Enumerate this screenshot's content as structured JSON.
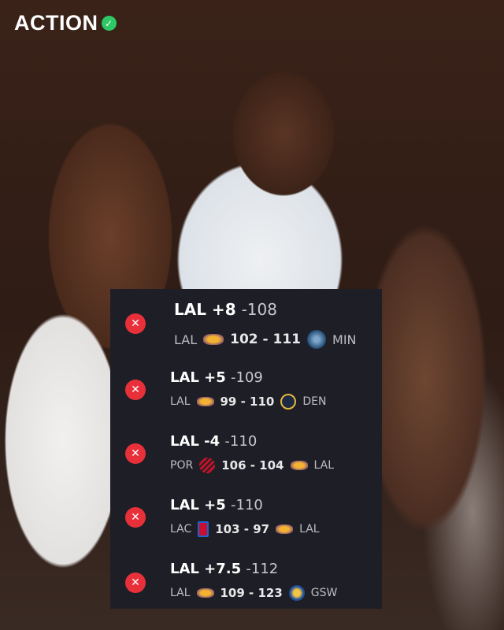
{
  "brand": {
    "name": "ACTION",
    "badge_icon": "check-circle-icon",
    "badge_color": "#2ec866"
  },
  "bets": [
    {
      "line": "LAL +8",
      "odds": "-108",
      "result_icon": "x-circle-icon",
      "away": "LAL",
      "away_logo": "lakers-logo",
      "score": "102 - 111",
      "home_logo": "timberwolves-logo",
      "home": "MIN"
    },
    {
      "line": "LAL +5",
      "odds": "-109",
      "result_icon": "x-circle-icon",
      "away": "LAL",
      "away_logo": "lakers-logo",
      "score": "99 - 110",
      "home_logo": "nuggets-logo",
      "home": "DEN"
    },
    {
      "line": "LAL -4",
      "odds": "-110",
      "result_icon": "x-circle-icon",
      "away": "POR",
      "away_logo": "trail-blazers-logo",
      "score": "106 - 104",
      "home_logo": "lakers-logo",
      "home": "LAL"
    },
    {
      "line": "LAL +5",
      "odds": "-110",
      "result_icon": "x-circle-icon",
      "away": "LAC",
      "away_logo": "clippers-logo",
      "score": "103 - 97",
      "home_logo": "lakers-logo",
      "home": "LAL"
    },
    {
      "line": "LAL +7.5",
      "odds": "-112",
      "result_icon": "x-circle-icon",
      "away": "LAL",
      "away_logo": "lakers-logo",
      "score": "109 - 123",
      "home_logo": "warriors-logo",
      "home": "GSW"
    }
  ],
  "colors": {
    "loss": "#e8303a",
    "card": "#1e1f26"
  }
}
